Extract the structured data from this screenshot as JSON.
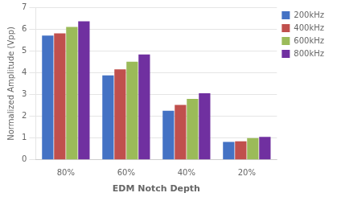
{
  "chart_data": {
    "type": "bar",
    "xlabel": "EDM Notch Depth",
    "ylabel": "Normalized Amplitude (Vpp)",
    "categories": [
      "80%",
      "60%",
      "40%",
      "20%"
    ],
    "series": [
      {
        "name": "200kHz",
        "color": "#4472C4",
        "values": [
          5.7,
          3.87,
          2.25,
          0.82
        ]
      },
      {
        "name": "400kHz",
        "color": "#C0504D",
        "values": [
          5.8,
          4.15,
          2.52,
          0.85
        ]
      },
      {
        "name": "600kHz",
        "color": "#9BBB59",
        "values": [
          6.1,
          4.5,
          2.8,
          1.0
        ]
      },
      {
        "name": "800kHz",
        "color": "#7030A0",
        "values": [
          6.35,
          4.83,
          3.05,
          1.05
        ]
      }
    ],
    "ylim": [
      0,
      7
    ],
    "yticks": [
      0,
      1,
      2,
      3,
      4,
      5,
      6,
      7
    ],
    "grid": true,
    "legend": "right"
  }
}
